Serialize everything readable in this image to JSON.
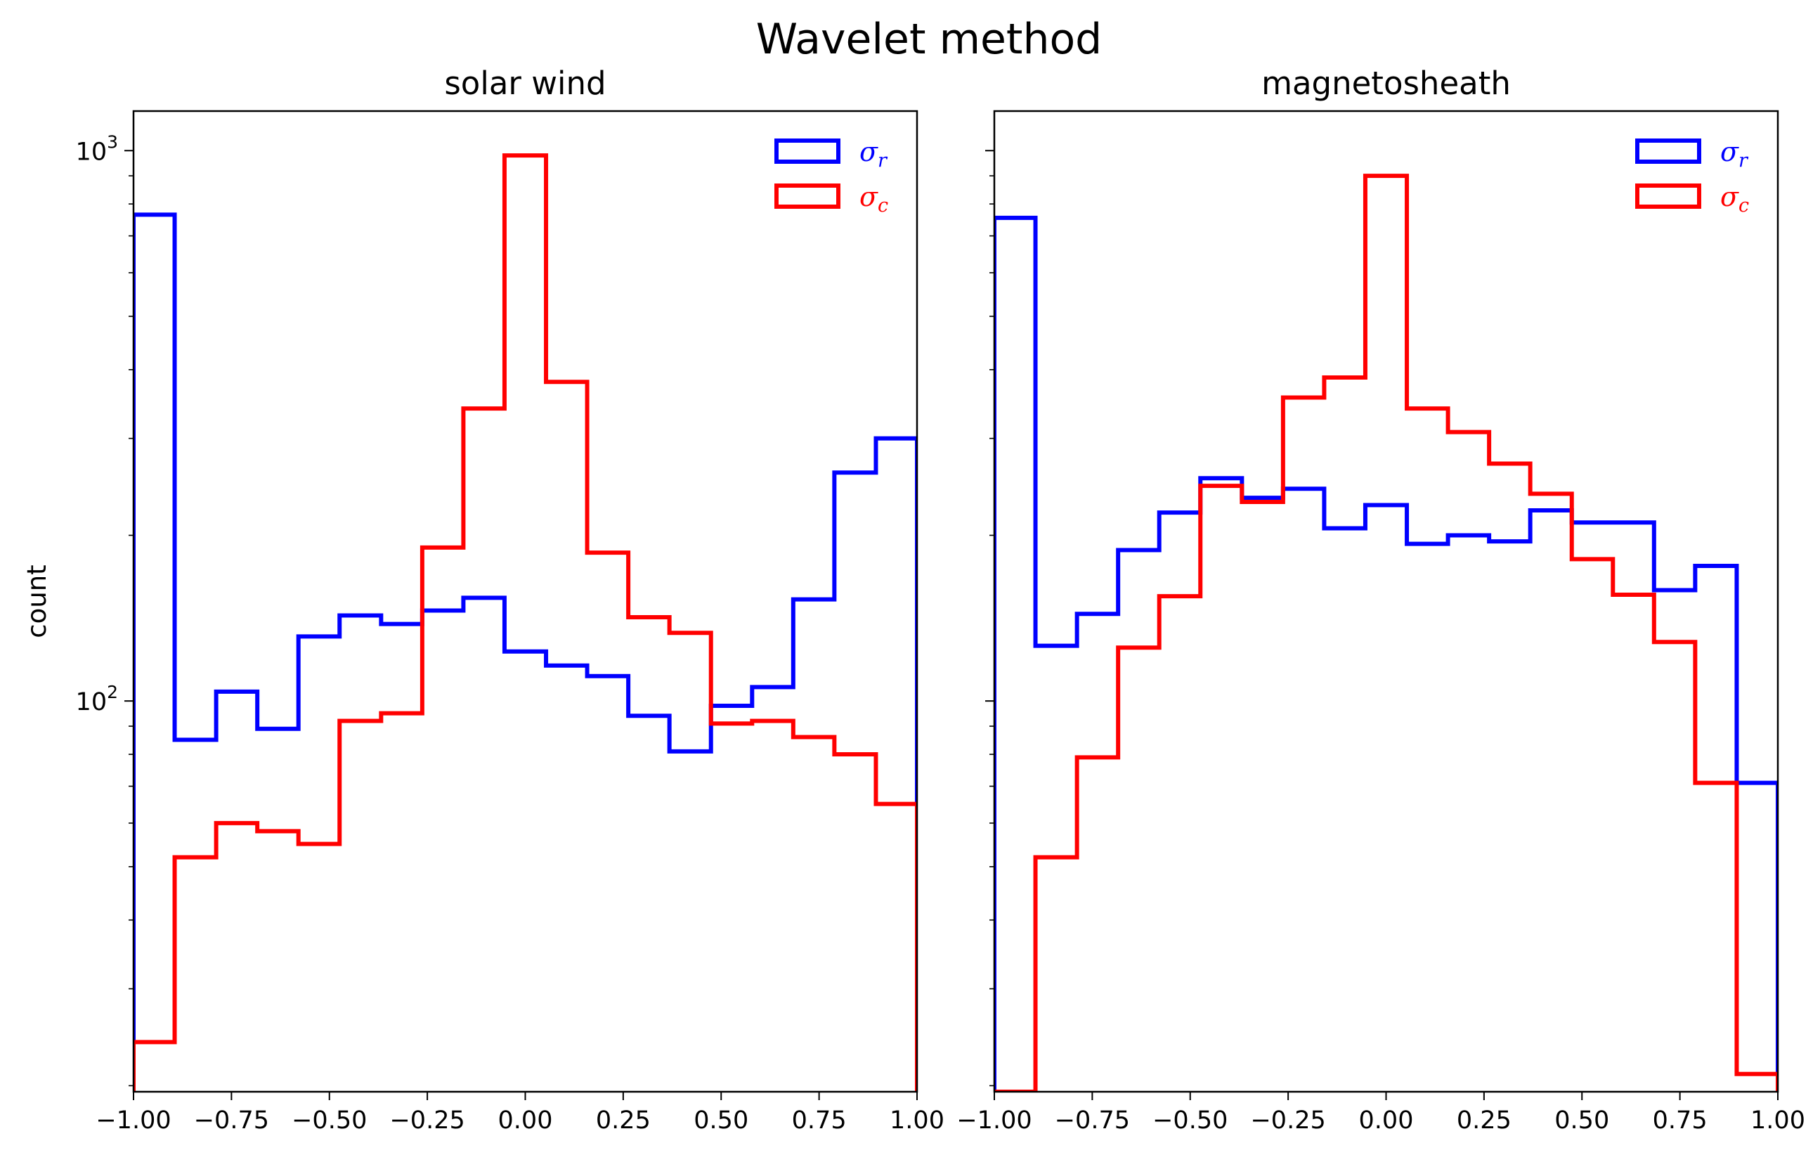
{
  "figure": {
    "title": "Wavelet method"
  },
  "colors": {
    "sigma_r": "#0000ff",
    "sigma_c": "#ff0000"
  },
  "chart_data": [
    {
      "type": "histogram",
      "title": "solar wind",
      "xlabel": "",
      "ylabel": "count",
      "yscale": "log",
      "xlim": [
        -1.0,
        1.0
      ],
      "ylim": [
        19.5,
        1180
      ],
      "xticks": [
        "−1.00",
        "−0.75",
        "−0.50",
        "−0.25",
        "0.00",
        "0.25",
        "0.50",
        "0.75",
        "1.00"
      ],
      "xtick_values": [
        -1.0,
        -0.75,
        -0.5,
        -0.25,
        0.0,
        0.25,
        0.5,
        0.75,
        1.0
      ],
      "yticks": [
        {
          "value": 100,
          "base": "10",
          "exp": "2"
        },
        {
          "value": 1000,
          "base": "10",
          "exp": "3"
        }
      ],
      "bin_edges": [
        -1.0,
        -0.895,
        -0.789,
        -0.684,
        -0.579,
        -0.474,
        -0.368,
        -0.263,
        -0.158,
        -0.053,
        0.053,
        0.158,
        0.263,
        0.368,
        0.474,
        0.579,
        0.684,
        0.789,
        0.895,
        1.0
      ],
      "legend_position": "top-right",
      "series": [
        {
          "name": "σ_r",
          "label_base": "σ",
          "label_sub": "r",
          "color_key": "sigma_r",
          "values": [
            765,
            85,
            104,
            89,
            131,
            143,
            138,
            146,
            154,
            123,
            116,
            111,
            94,
            81,
            98,
            106,
            153,
            260,
            300
          ]
        },
        {
          "name": "σ_c",
          "label_base": "σ",
          "label_sub": "c",
          "color_key": "sigma_c",
          "values": [
            24,
            52,
            60,
            58,
            55,
            92,
            95,
            190,
            340,
            980,
            380,
            186,
            142,
            133,
            91,
            92,
            86,
            80,
            65
          ]
        }
      ]
    },
    {
      "type": "histogram",
      "title": "magnetosheath",
      "xlabel": "",
      "ylabel": "",
      "yscale": "log",
      "xlim": [
        -1.0,
        1.0
      ],
      "ylim": [
        19.5,
        1180
      ],
      "xticks": [
        "−1.00",
        "−0.75",
        "−0.50",
        "−0.25",
        "0.00",
        "0.25",
        "0.50",
        "0.75",
        "1.00"
      ],
      "xtick_values": [
        -1.0,
        -0.75,
        -0.5,
        -0.25,
        0.0,
        0.25,
        0.5,
        0.75,
        1.0
      ],
      "yticks": [],
      "bin_edges": [
        -1.0,
        -0.895,
        -0.789,
        -0.684,
        -0.579,
        -0.474,
        -0.368,
        -0.263,
        -0.158,
        -0.053,
        0.053,
        0.158,
        0.263,
        0.368,
        0.474,
        0.579,
        0.684,
        0.789,
        0.895,
        1.0
      ],
      "legend_position": "top-right",
      "series": [
        {
          "name": "σ_r",
          "label_base": "σ",
          "label_sub": "r",
          "color_key": "sigma_r",
          "values": [
            755,
            126,
            144,
            188,
            220,
            254,
            234,
            243,
            206,
            227,
            193,
            200,
            195,
            222,
            211,
            211,
            159,
            176,
            71
          ]
        },
        {
          "name": "σ_c",
          "label_base": "σ",
          "label_sub": "c",
          "color_key": "sigma_c",
          "values": [
            18,
            52,
            79,
            125,
            155,
            246,
            230,
            356,
            387,
            900,
            340,
            308,
            270,
            238,
            181,
            156,
            128,
            71,
            21
          ]
        }
      ]
    }
  ]
}
